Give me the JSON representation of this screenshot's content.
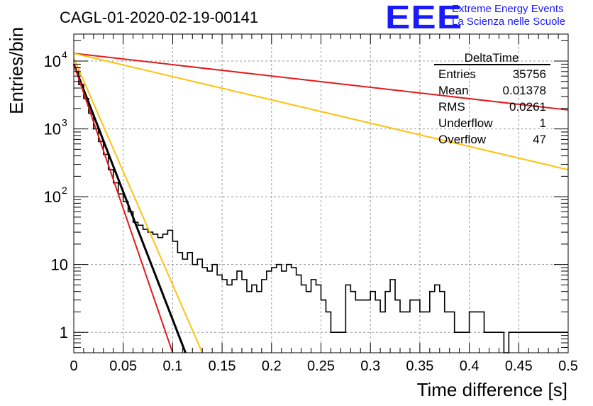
{
  "title": "CAGL-01-2020-02-19-00141",
  "brand": {
    "logo": "EEE",
    "line1": "Extreme Energy Events",
    "line2": "La Scienza nelle Scuole",
    "color": "#1a1aff"
  },
  "stats": {
    "name": "DeltaTime",
    "rows": [
      {
        "label": "Entries",
        "value": "35756"
      },
      {
        "label": "Mean",
        "value": "0.01378"
      },
      {
        "label": "RMS",
        "value": "0.0261"
      },
      {
        "label": "Underflow",
        "value": "1"
      },
      {
        "label": "Overflow",
        "value": "47"
      }
    ]
  },
  "chart_data": {
    "type": "line",
    "title": "CAGL-01-2020-02-19-00141",
    "xlabel": "Time difference [s]",
    "ylabel": "Entries/bin",
    "xlim": [
      0,
      0.5
    ],
    "ylim": [
      0.5,
      25000
    ],
    "yscale": "log",
    "grid": true,
    "x_ticks": [
      "0",
      "0.05",
      "0.1",
      "0.15",
      "0.2",
      "0.25",
      "0.3",
      "0.35",
      "0.4",
      "0.45",
      "0.5"
    ],
    "y_ticks": [
      {
        "value": 1,
        "label": "1",
        "exp": ""
      },
      {
        "value": 10,
        "label": "10",
        "exp": ""
      },
      {
        "value": 100,
        "label": "10",
        "exp": "2"
      },
      {
        "value": 1000,
        "label": "10",
        "exp": "3"
      },
      {
        "value": 10000,
        "label": "10",
        "exp": "4"
      }
    ],
    "histogram": {
      "bin_width": 0.005,
      "color": "#000000",
      "counts": [
        8000,
        4500,
        2800,
        1700,
        1000,
        650,
        420,
        250,
        160,
        110,
        85,
        60,
        42,
        38,
        33,
        30,
        28,
        25,
        28,
        32,
        22,
        15,
        12,
        15,
        10,
        12,
        9,
        8,
        10,
        7,
        6,
        5,
        6,
        8,
        6,
        4,
        5,
        4,
        6,
        8,
        9,
        10,
        8,
        10,
        9,
        7,
        5,
        4,
        6,
        5,
        3,
        2,
        1,
        1,
        1,
        5,
        4,
        3,
        3,
        3,
        4,
        3,
        2,
        4,
        6,
        3,
        2,
        2,
        3,
        3,
        2,
        2,
        4,
        5,
        4,
        2,
        2,
        1,
        1,
        1,
        2,
        2,
        2,
        1,
        1,
        1,
        1,
        0.5,
        1,
        1,
        1,
        1,
        1,
        1,
        1,
        1,
        1,
        1,
        1,
        1
      ]
    },
    "fits": [
      {
        "color": "#000000",
        "x": [
          0,
          0.113
        ],
        "y": [
          9000,
          0.5
        ]
      },
      {
        "color": "#e31a1c",
        "x": [
          0,
          0.1
        ],
        "y": [
          9000,
          0.5
        ]
      },
      {
        "color": "#ffc20e",
        "x": [
          0,
          0.13
        ],
        "y": [
          11000,
          0.5
        ]
      },
      {
        "color": "#e31a1c",
        "x": [
          0,
          0.5
        ],
        "y": [
          13000,
          1900
        ]
      },
      {
        "color": "#ffc20e",
        "x": [
          0,
          0.5
        ],
        "y": [
          13000,
          250
        ]
      }
    ]
  }
}
